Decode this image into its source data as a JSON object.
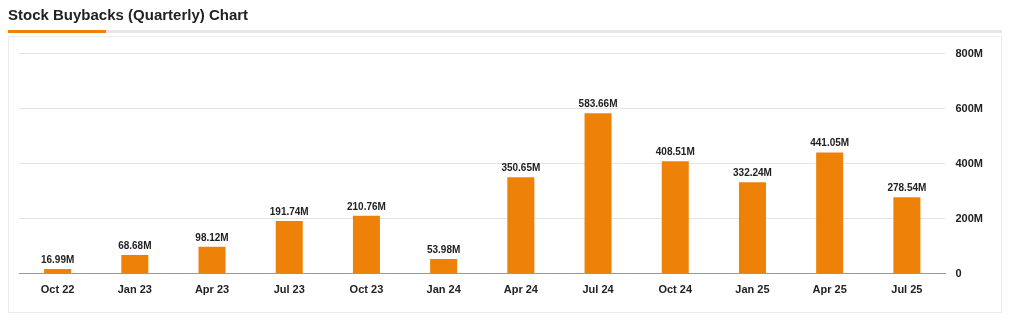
{
  "chart_data": {
    "type": "bar",
    "title": "Stock Buybacks (Quarterly) Chart",
    "categories": [
      "Oct 22",
      "Jan 23",
      "Apr 23",
      "Jul 23",
      "Oct 23",
      "Jan 24",
      "Apr 24",
      "Jul 24",
      "Oct 24",
      "Jan 25",
      "Apr 25",
      "Jul 25"
    ],
    "values": [
      16.99,
      68.68,
      98.12,
      191.74,
      210.76,
      53.98,
      350.65,
      583.66,
      408.51,
      332.24,
      441.05,
      278.54
    ],
    "value_labels": [
      "16.99M",
      "68.68M",
      "98.12M",
      "191.74M",
      "210.76M",
      "53.98M",
      "350.65M",
      "583.66M",
      "408.51M",
      "332.24M",
      "441.05M",
      "278.54M"
    ],
    "color": "#ee8208",
    "ylim": [
      0,
      800
    ],
    "yticks": [
      0,
      {
        "value": 200,
        "label": "200M"
      },
      {
        "value": 400,
        "label": "400M"
      },
      {
        "value": 600,
        "label": "600M"
      },
      {
        "value": 800,
        "label": "800M"
      }
    ],
    "grid": "y"
  }
}
